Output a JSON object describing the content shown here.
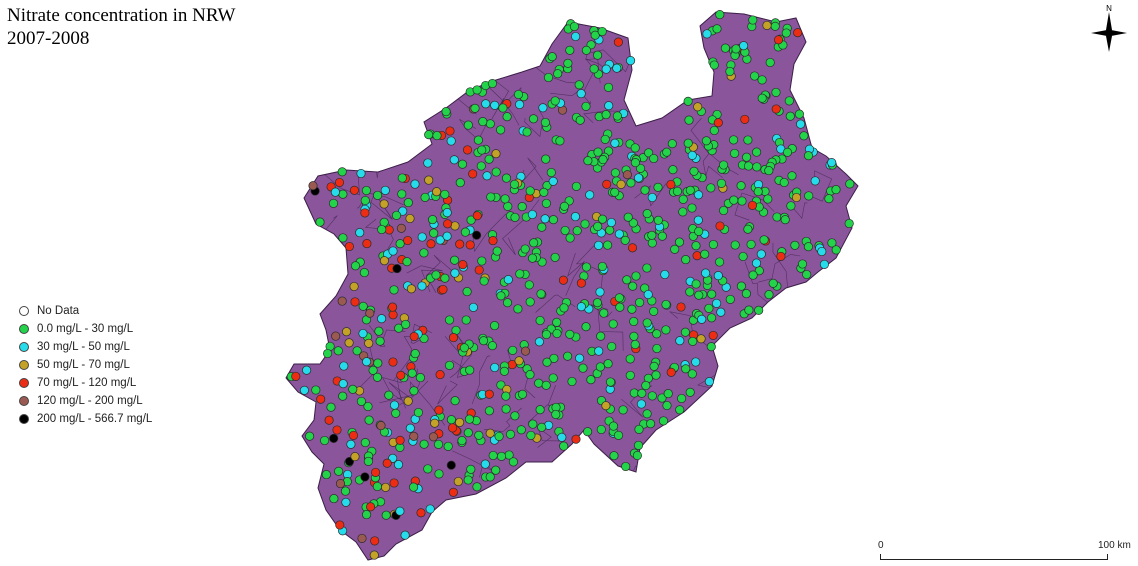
{
  "title": {
    "line1": "Nitrate concentration in NRW",
    "line2": "2007-2008"
  },
  "map": {
    "region_fill": "#8a559b",
    "district_border": "#3b1f48"
  },
  "legend": [
    {
      "label": "No Data",
      "color": "#ffffff"
    },
    {
      "label": "0.0 mg/L - 30 mg/L",
      "color": "#23d34a"
    },
    {
      "label": "30 mg/L - 50 mg/L",
      "color": "#27dcea"
    },
    {
      "label": "50 mg/L - 70 mg/L",
      "color": "#c4a227"
    },
    {
      "label": "70 mg/L - 120 mg/L",
      "color": "#ec2d14"
    },
    {
      "label": "120 mg/L - 200 mg/L",
      "color": "#9a5a52"
    },
    {
      "label": "200 mg/L - 566.7 mg/L",
      "color": "#000000"
    }
  ],
  "north_arrow": {
    "label": "N",
    "icon": "compass-rose-icon"
  },
  "scale_bar": {
    "start_label": "0",
    "end_label": "100 km"
  }
}
